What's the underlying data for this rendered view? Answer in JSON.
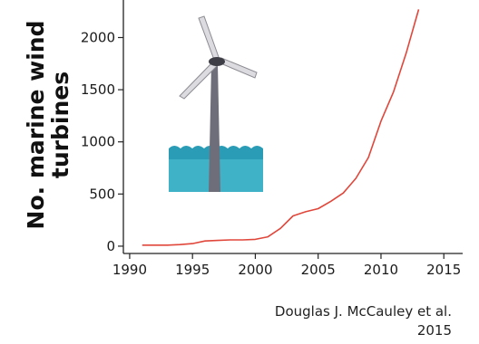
{
  "chart_data": {
    "type": "line",
    "title": "",
    "xlabel": "",
    "ylabel_lines": [
      "No. marine wind",
      "turbines"
    ],
    "x_ticks": [
      "1990",
      "1995",
      "2000",
      "2005",
      "2010",
      "2015"
    ],
    "y_ticks": [
      "0",
      "500",
      "1000",
      "1500",
      "2000"
    ],
    "xlim": [
      1989.5,
      2016.5
    ],
    "ylim": [
      -70,
      2360
    ],
    "line_color": "#e0463a",
    "grid": false,
    "series": [
      {
        "x": [
          1991,
          1992,
          1993,
          1994,
          1995,
          1996,
          1997,
          1998,
          1999,
          2000,
          2001,
          2002,
          2003,
          2004,
          2005,
          2006,
          2007,
          2008,
          2009,
          2010,
          2011,
          2012,
          2013
        ],
        "y": [
          10,
          10,
          10,
          15,
          25,
          50,
          55,
          60,
          60,
          65,
          90,
          170,
          290,
          330,
          360,
          430,
          510,
          650,
          850,
          1200,
          1480,
          1850,
          2270
        ]
      }
    ]
  },
  "credit": {
    "author": "Douglas J. McCauley et al.",
    "year": "2015"
  }
}
